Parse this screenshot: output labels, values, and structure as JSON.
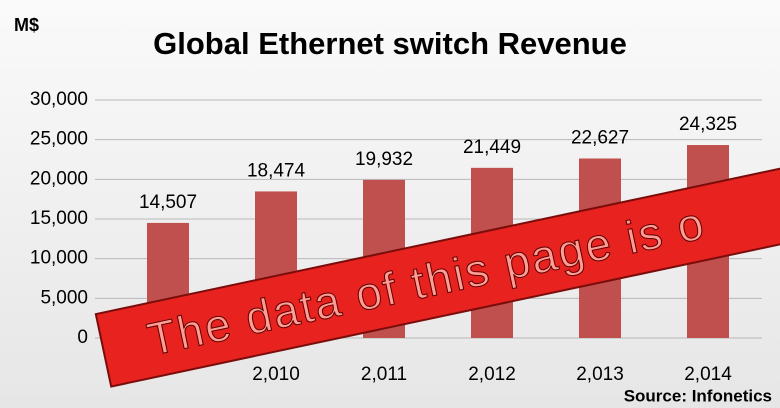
{
  "chart_data": {
    "type": "bar",
    "title": "Global Ethernet switch Revenue",
    "y_label": "M$",
    "source": "Source: Infonetics",
    "annotation": "The data of this page is o",
    "categories": [
      null,
      "2,010",
      "2,011",
      "2,012",
      "2,013",
      "2,014"
    ],
    "values": [
      14507,
      18474,
      19932,
      21449,
      22627,
      24325
    ],
    "value_labels": [
      "14,507",
      "18,474",
      "19,932",
      "21,449",
      "22,627",
      "24,325"
    ],
    "color": "#c0504d",
    "ylim": [
      0,
      30000
    ],
    "yticks": [
      0,
      {
        "value": 5000,
        "label": "5,000"
      },
      {
        "value": 10000,
        "label": "10,000"
      },
      {
        "value": 15000,
        "label": "15,000"
      },
      {
        "value": 20000,
        "label": "20,000"
      },
      {
        "value": 25000,
        "label": "25,000"
      },
      {
        "value": 30000,
        "label": "30,000"
      }
    ],
    "grid": true
  }
}
